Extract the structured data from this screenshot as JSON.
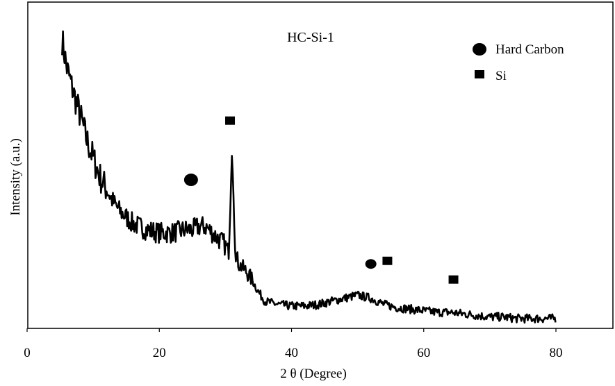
{
  "chart_data": {
    "type": "line",
    "title": "HC-Si-1",
    "xlabel": "2 θ (Degree)",
    "ylabel": "Intensity (a.u.)",
    "xlim": [
      0,
      88
    ],
    "ylim": [
      0,
      100
    ],
    "xticks": [
      "0",
      "20",
      "40",
      "60",
      "80"
    ],
    "xtick_values": [
      0,
      20,
      40,
      60,
      80
    ],
    "grid": false,
    "legend_position": "top-right",
    "line_color": "#000000",
    "series": [
      {
        "x": [
          5.3,
          6,
          7,
          8,
          9,
          10,
          11,
          12,
          13,
          14,
          15,
          16,
          17,
          18,
          19,
          20,
          21,
          22,
          23,
          24,
          25,
          26,
          27,
          28,
          29,
          30,
          30.5,
          31,
          31.5,
          32,
          33,
          34,
          35,
          36,
          38,
          40,
          42,
          44,
          46,
          48,
          50,
          52,
          54,
          56,
          58,
          60,
          62,
          64,
          66,
          68,
          70,
          72,
          74,
          76,
          78,
          80
        ],
        "y": [
          92,
          83,
          75,
          68,
          60,
          54,
          48,
          44,
          40,
          37,
          35,
          33,
          32,
          31,
          30.5,
          30,
          30,
          30,
          30.5,
          31,
          31,
          32,
          32,
          30,
          28,
          26,
          24,
          56,
          24,
          20,
          18,
          15,
          11,
          8,
          7,
          6.5,
          6.5,
          7,
          8,
          9,
          10,
          9,
          7,
          6,
          5.5,
          5,
          4.5,
          4.5,
          4,
          3.5,
          3,
          3,
          2.5,
          2.5,
          2.5,
          2.5
        ]
      }
    ],
    "legend": [
      {
        "marker": "circle",
        "label": "Hard Carbon"
      },
      {
        "marker": "square",
        "label": "Si"
      }
    ],
    "annotations": [
      {
        "marker": "circle",
        "x": 24.8,
        "y": 47
      },
      {
        "marker": "square",
        "x": 30.7,
        "y": 66
      },
      {
        "marker": "circle",
        "x": 52,
        "y": 20
      },
      {
        "marker": "square",
        "x": 54.5,
        "y": 21
      },
      {
        "marker": "square",
        "x": 64.5,
        "y": 15
      }
    ]
  }
}
